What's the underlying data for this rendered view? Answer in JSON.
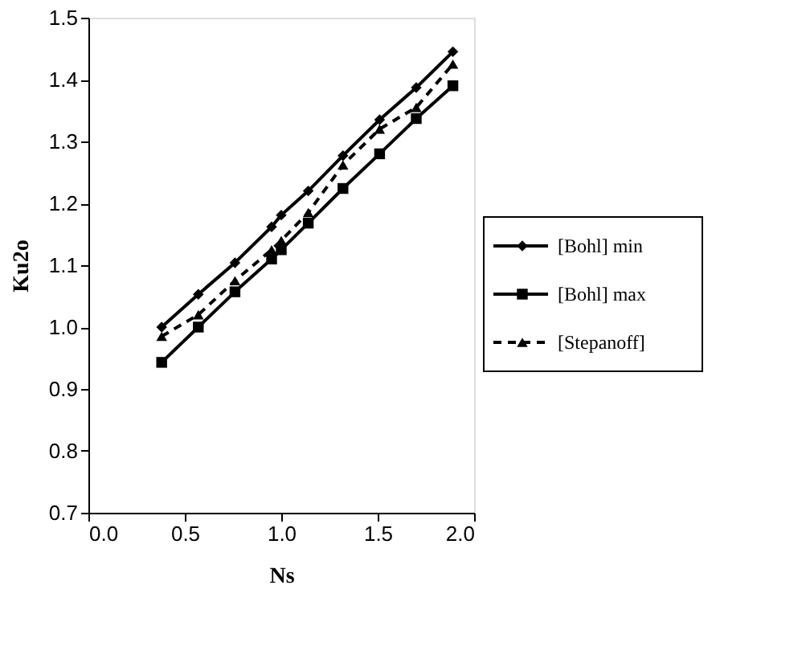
{
  "chart_data": {
    "type": "line",
    "xlabel": "Ns",
    "ylabel": "Ku2o",
    "x": [
      0.38,
      0.57,
      0.76,
      0.95,
      1.0,
      1.14,
      1.32,
      1.51,
      1.7,
      1.89
    ],
    "series": [
      {
        "name": "[Bohl] min",
        "color": "#000000",
        "marker": "diamond",
        "line_style": "solid",
        "values": [
          1.0,
          1.053,
          1.104,
          1.162,
          1.181,
          1.22,
          1.277,
          1.335,
          1.387,
          1.445
        ]
      },
      {
        "name": "[Bohl] max",
        "color": "#000000",
        "marker": "square",
        "line_style": "solid",
        "values": [
          0.943,
          1.0,
          1.057,
          1.11,
          1.125,
          1.168,
          1.224,
          1.28,
          1.337,
          1.39
        ]
      },
      {
        "name": "[Stepanoff]",
        "color": "#000000",
        "marker": "triangle",
        "line_style": "dashed",
        "values": [
          0.985,
          1.02,
          1.075,
          1.125,
          1.14,
          1.185,
          1.262,
          1.32,
          1.355,
          1.425
        ]
      }
    ],
    "xlim": [
      0,
      2
    ],
    "xticks": [
      {
        "value": 0,
        "label": "0.0"
      },
      {
        "value": 0.5,
        "label": "0.5"
      },
      {
        "value": 1,
        "label": "1.0"
      },
      {
        "value": 1.5,
        "label": "1.5"
      },
      {
        "value": 2,
        "label": "2.0"
      }
    ],
    "ylim": [
      0.7,
      1.5
    ],
    "yticks": [
      0.7,
      0.8,
      0.9,
      {
        "value": 1.0,
        "label": "1.0"
      },
      1.1,
      1.2,
      1.3,
      1.4,
      1.5
    ],
    "grid": false,
    "legend": "right"
  }
}
